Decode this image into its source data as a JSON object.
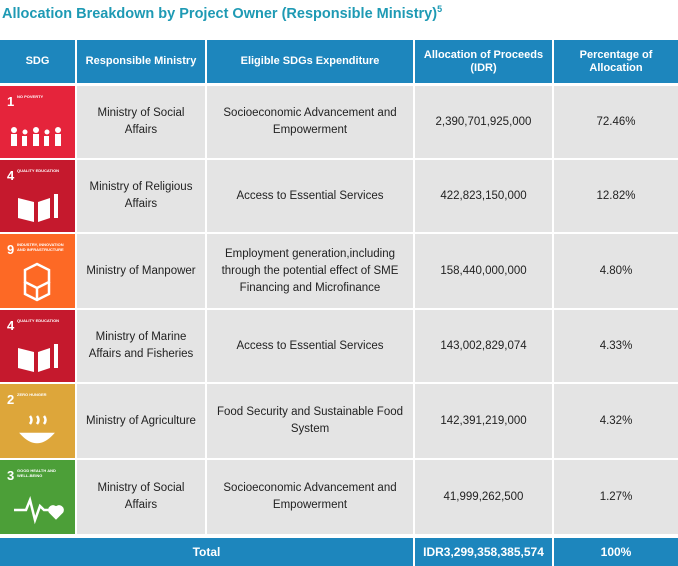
{
  "title": "Allocation Breakdown by Project Owner (Responsible Ministry)",
  "footnote": "5",
  "table": {
    "headers": [
      "SDG",
      "Responsible Ministry",
      "Eligible SDGs Expenditure",
      "Allocation of Proceeds (IDR)",
      "Percentage of Allocation"
    ],
    "rows": [
      {
        "sdg": {
          "number": "1",
          "label": "NO POVERTY",
          "color": "#e5243b"
        },
        "ministry": "Ministry of Social Affairs",
        "expenditure": "Socioeconomic Advancement and Empowerment",
        "allocation": "2,390,701,925,000",
        "percentage": "72.46%"
      },
      {
        "sdg": {
          "number": "4",
          "label": "QUALITY EDUCATION",
          "color": "#c5192d"
        },
        "ministry": "Ministry of Religious Affairs",
        "expenditure": "Access to Essential Services",
        "allocation": "422,823,150,000",
        "percentage": "12.82%"
      },
      {
        "sdg": {
          "number": "9",
          "label": "INDUSTRY, INNOVATION AND INFRASTRUCTURE",
          "color": "#fd6925"
        },
        "ministry": "Ministry of Manpower",
        "expenditure": "Employment generation,including through the potential effect of SME Financing and Microfinance",
        "allocation": "158,440,000,000",
        "percentage": "4.80%"
      },
      {
        "sdg": {
          "number": "4",
          "label": "QUALITY EDUCATION",
          "color": "#c5192d"
        },
        "ministry": "Ministry of Marine Affairs and Fisheries",
        "expenditure": "Access to Essential Services",
        "allocation": "143,002,829,074",
        "percentage": "4.33%"
      },
      {
        "sdg": {
          "number": "2",
          "label": "ZERO HUNGER",
          "color": "#dda63a"
        },
        "ministry": "Ministry of Agriculture",
        "expenditure": "Food Security and Sustainable Food System",
        "allocation": "142,391,219,000",
        "percentage": "4.32%"
      },
      {
        "sdg": {
          "number": "3",
          "label": "GOOD HEALTH AND WELL-BEING",
          "color": "#4c9f38"
        },
        "ministry": "Ministry of Social Affairs",
        "expenditure": "Socioeconomic Advancement and Empowerment",
        "allocation": "41,999,262,500",
        "percentage": "1.27%"
      }
    ],
    "total": {
      "label": "Total",
      "allocation": "IDR3,299,358,385,574",
      "percentage": "100%"
    }
  }
}
